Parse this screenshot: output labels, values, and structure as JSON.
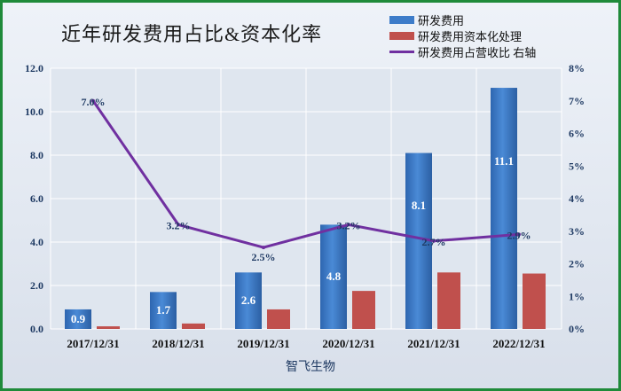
{
  "chart_data": {
    "type": "bar",
    "title": "近年研发费用占比&资本化率",
    "xlabel": "智飞生物",
    "categories": [
      "2017/12/31",
      "2018/12/31",
      "2019/12/31",
      "2020/12/31",
      "2021/12/31",
      "2022/12/31"
    ],
    "ylim": [
      0,
      12
    ],
    "y_ticks": [
      "0.0",
      "2.0",
      "4.0",
      "6.0",
      "8.0",
      "10.0",
      "12.0"
    ],
    "y2lim": [
      0,
      8
    ],
    "y2_ticks": [
      "0%",
      "1%",
      "2%",
      "3%",
      "4%",
      "5%",
      "6%",
      "7%",
      "8%"
    ],
    "grid": true,
    "legend_position": "top-right",
    "series": [
      {
        "name": "研发费用",
        "type": "bar",
        "axis": "left",
        "color": "#3d7cc9",
        "values": [
          0.9,
          1.7,
          2.6,
          4.8,
          8.1,
          11.1
        ],
        "labels": [
          "0.9",
          "1.7",
          "2.6",
          "4.8",
          "8.1",
          "11.1"
        ]
      },
      {
        "name": "研发费用资本化处理",
        "type": "bar",
        "axis": "left",
        "color": "#c0504d",
        "values": [
          0.12,
          0.25,
          0.9,
          1.75,
          2.6,
          2.55
        ]
      },
      {
        "name": "研发费用占营收比 右轴",
        "type": "line",
        "axis": "right",
        "color": "#7030a0",
        "values": [
          7.0,
          3.2,
          2.5,
          3.2,
          2.7,
          2.9
        ],
        "labels": [
          "7.0%",
          "3.2%",
          "2.5%",
          "3.2%",
          "2.7%",
          "2.9%"
        ]
      }
    ]
  }
}
